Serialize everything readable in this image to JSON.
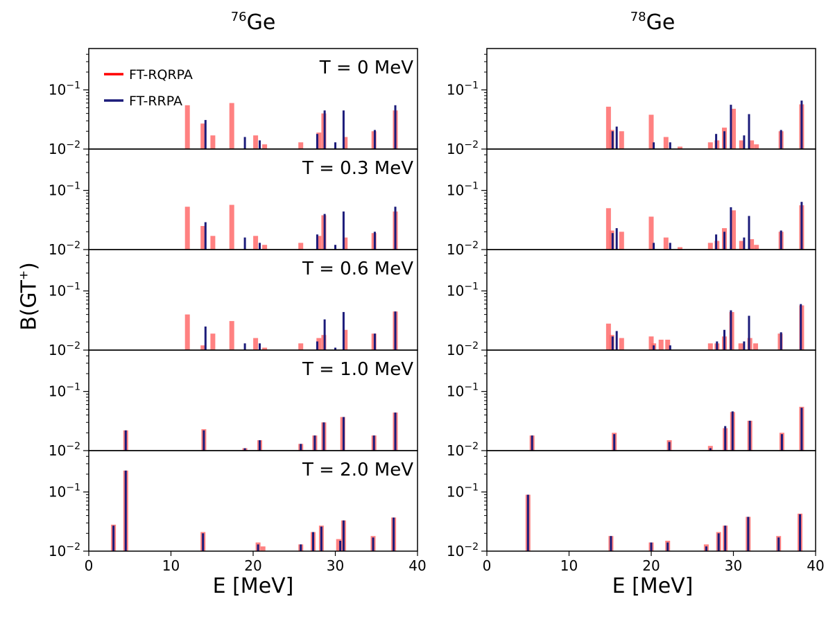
{
  "figure": {
    "ylabel_base": "B(GT",
    "ylabel_sup": "+",
    "ylabel_tail": ")",
    "temperatures": [
      "T = 0 MeV",
      "T = 0.3 MeV",
      "T = 0.6 MeV",
      "T = 1.0 MeV",
      "T = 2.0 MeV"
    ],
    "ytick_base": "10",
    "ytick_exp_major": "−1",
    "ytick_exp_bottom": "−2",
    "colors": {
      "FT-RQRPA": "#ff6b6b",
      "FT-RRPA": "#1b1b7a"
    }
  },
  "columns": [
    {
      "iso_mass": "76",
      "iso_symbol": "Ge",
      "xlabel": "E [MeV]"
    },
    {
      "iso_mass": "78",
      "iso_symbol": "Ge",
      "xlabel": "E [MeV]"
    }
  ],
  "chart_data": [
    {
      "type": "bar",
      "title": "76Ge",
      "xlabel": "E [MeV]",
      "ylabel": "B(GT+)",
      "xlim": [
        0,
        40
      ],
      "xticks": [
        0,
        10,
        20,
        30,
        40
      ],
      "yscale": "log",
      "ylim": [
        0.01,
        0.5
      ],
      "legend": {
        "placement": "top-left",
        "entries": [
          "FT-RQRPA",
          "FT-RRPA"
        ]
      },
      "panels": [
        {
          "T": "T = 0 MeV",
          "series": [
            {
              "name": "FT-RQRPA",
              "x": [
                12.0,
                13.9,
                15.1,
                17.4,
                20.3,
                21.4,
                25.8,
                28.0,
                28.6,
                31.2,
                34.7,
                37.3
              ],
              "values": [
                0.055,
                0.027,
                0.017,
                0.06,
                0.017,
                0.012,
                0.013,
                0.019,
                0.04,
                0.016,
                0.02,
                0.045
              ]
            },
            {
              "name": "FT-RRPA",
              "x": [
                14.2,
                19.0,
                20.8,
                27.8,
                28.7,
                30.0,
                31.0,
                34.8,
                37.3
              ],
              "values": [
                0.031,
                0.016,
                0.014,
                0.018,
                0.045,
                0.013,
                0.045,
                0.021,
                0.055
              ]
            }
          ]
        },
        {
          "T": "T = 0.3 MeV",
          "series": [
            {
              "name": "FT-RQRPA",
              "x": [
                12.0,
                13.9,
                15.1,
                17.4,
                20.3,
                21.4,
                25.8,
                28.0,
                28.6,
                31.2,
                34.7,
                37.3
              ],
              "values": [
                0.053,
                0.025,
                0.017,
                0.057,
                0.017,
                0.012,
                0.013,
                0.017,
                0.038,
                0.016,
                0.019,
                0.044
              ]
            },
            {
              "name": "FT-RRPA",
              "x": [
                14.2,
                19.0,
                20.8,
                27.8,
                28.7,
                30.0,
                31.0,
                34.8,
                37.3
              ],
              "values": [
                0.029,
                0.016,
                0.013,
                0.018,
                0.04,
                0.012,
                0.044,
                0.02,
                0.053
              ]
            }
          ]
        },
        {
          "T": "T = 0.6 MeV",
          "series": [
            {
              "name": "FT-RQRPA",
              "x": [
                12.0,
                13.9,
                15.1,
                17.4,
                20.3,
                21.4,
                25.8,
                28.0,
                28.6,
                31.2,
                34.7,
                37.3
              ],
              "values": [
                0.04,
                0.012,
                0.019,
                0.031,
                0.016,
                0.011,
                0.013,
                0.016,
                0.018,
                0.022,
                0.019,
                0.045
              ]
            },
            {
              "name": "FT-RRPA",
              "x": [
                14.2,
                19.0,
                20.8,
                27.8,
                28.7,
                30.0,
                31.0,
                34.8,
                37.3
              ],
              "values": [
                0.025,
                0.013,
                0.013,
                0.014,
                0.033,
                0.011,
                0.044,
                0.019,
                0.045
              ]
            }
          ]
        },
        {
          "T": "T = 1.0 MeV",
          "series": [
            {
              "name": "FT-RQRPA",
              "x": [
                4.5,
                14.0,
                19.0,
                20.8,
                25.8,
                27.5,
                28.6,
                30.9,
                34.7,
                37.3
              ],
              "values": [
                0.022,
                0.023,
                0.011,
                0.015,
                0.013,
                0.018,
                0.03,
                0.037,
                0.018,
                0.044
              ]
            },
            {
              "name": "FT-RRPA",
              "x": [
                4.5,
                14.0,
                19.0,
                20.8,
                25.8,
                27.5,
                28.6,
                31.0,
                34.7,
                37.3
              ],
              "values": [
                0.022,
                0.022,
                0.011,
                0.015,
                0.013,
                0.018,
                0.03,
                0.037,
                0.018,
                0.044
              ]
            }
          ]
        },
        {
          "T": "T = 2.0 MeV",
          "series": [
            {
              "name": "FT-RQRPA",
              "x": [
                3.0,
                4.5,
                13.9,
                20.6,
                21.2,
                25.8,
                27.3,
                28.3,
                30.4,
                31.0,
                34.6,
                37.1
              ],
              "values": [
                0.028,
                0.23,
                0.021,
                0.014,
                0.012,
                0.013,
                0.021,
                0.027,
                0.016,
                0.033,
                0.018,
                0.037
              ]
            },
            {
              "name": "FT-RRPA",
              "x": [
                3.0,
                4.5,
                13.9,
                20.6,
                25.8,
                27.3,
                28.3,
                30.6,
                31.0,
                34.6,
                37.1
              ],
              "values": [
                0.027,
                0.23,
                0.02,
                0.013,
                0.013,
                0.021,
                0.026,
                0.015,
                0.033,
                0.017,
                0.037
              ]
            }
          ]
        }
      ]
    },
    {
      "type": "bar",
      "title": "78Ge",
      "xlabel": "E [MeV]",
      "ylabel": "B(GT+)",
      "xlim": [
        0,
        40
      ],
      "xticks": [
        0,
        10,
        20,
        30,
        40
      ],
      "yscale": "log",
      "ylim": [
        0.01,
        0.5
      ],
      "panels": [
        {
          "T": "T = 0 MeV",
          "series": [
            {
              "name": "FT-RQRPA",
              "x": [
                14.8,
                15.2,
                16.4,
                20.0,
                21.8,
                23.5,
                27.2,
                28.0,
                28.9,
                30.0,
                31.0,
                32.2,
                32.8,
                35.8,
                38.3
              ],
              "values": [
                0.052,
                0.021,
                0.02,
                0.038,
                0.016,
                0.011,
                0.013,
                0.014,
                0.023,
                0.048,
                0.014,
                0.014,
                0.012,
                0.02,
                0.057
              ]
            },
            {
              "name": "FT-RRPA",
              "x": [
                15.3,
                15.8,
                20.3,
                22.3,
                27.9,
                28.9,
                29.7,
                31.3,
                31.9,
                35.8,
                38.3
              ],
              "values": [
                0.02,
                0.024,
                0.013,
                0.013,
                0.018,
                0.02,
                0.056,
                0.017,
                0.039,
                0.021,
                0.066
              ]
            }
          ]
        },
        {
          "T": "T = 0.3 MeV",
          "series": [
            {
              "name": "FT-RQRPA",
              "x": [
                14.8,
                15.2,
                16.4,
                20.0,
                21.8,
                23.5,
                27.2,
                28.0,
                28.9,
                30.0,
                31.0,
                32.2,
                32.8,
                35.8,
                38.3
              ],
              "values": [
                0.05,
                0.021,
                0.02,
                0.036,
                0.016,
                0.011,
                0.013,
                0.014,
                0.023,
                0.046,
                0.014,
                0.015,
                0.012,
                0.02,
                0.056
              ]
            },
            {
              "name": "FT-RRPA",
              "x": [
                15.3,
                15.8,
                20.3,
                22.3,
                27.9,
                28.9,
                29.7,
                31.3,
                31.9,
                35.8,
                38.3
              ],
              "values": [
                0.019,
                0.023,
                0.013,
                0.013,
                0.018,
                0.02,
                0.052,
                0.016,
                0.037,
                0.021,
                0.064
              ]
            }
          ]
        },
        {
          "T": "T = 0.6 MeV",
          "series": [
            {
              "name": "FT-RQRPA",
              "x": [
                14.8,
                15.2,
                16.4,
                20.0,
                20.3,
                21.2,
                22.0,
                27.2,
                28.0,
                28.9,
                29.8,
                30.9,
                32.0,
                32.7,
                35.7,
                38.3
              ],
              "values": [
                0.028,
                0.018,
                0.016,
                0.017,
                0.013,
                0.015,
                0.015,
                0.013,
                0.013,
                0.017,
                0.044,
                0.013,
                0.016,
                0.013,
                0.019,
                0.057
              ]
            },
            {
              "name": "FT-RRPA",
              "x": [
                15.3,
                15.8,
                20.3,
                22.3,
                28.0,
                28.9,
                29.7,
                31.3,
                31.9,
                35.8,
                38.2
              ],
              "values": [
                0.017,
                0.021,
                0.012,
                0.012,
                0.014,
                0.022,
                0.047,
                0.014,
                0.038,
                0.02,
                0.06
              ]
            }
          ]
        },
        {
          "T": "T = 1.0 MeV",
          "series": [
            {
              "name": "FT-RQRPA",
              "x": [
                5.5,
                15.5,
                22.2,
                27.2,
                29.0,
                29.9,
                32.0,
                35.9,
                38.3
              ],
              "values": [
                0.018,
                0.02,
                0.015,
                0.012,
                0.024,
                0.045,
                0.032,
                0.02,
                0.055
              ]
            },
            {
              "name": "FT-RRPA",
              "x": [
                5.5,
                15.5,
                22.2,
                27.2,
                29.0,
                29.9,
                32.0,
                35.9,
                38.3
              ],
              "values": [
                0.018,
                0.019,
                0.014,
                0.011,
                0.026,
                0.046,
                0.032,
                0.019,
                0.053
              ]
            }
          ]
        },
        {
          "T": "T = 2.0 MeV",
          "series": [
            {
              "name": "FT-RQRPA",
              "x": [
                5.0,
                15.1,
                20.0,
                22.0,
                26.7,
                28.2,
                29.0,
                31.8,
                35.5,
                38.1
              ],
              "values": [
                0.09,
                0.018,
                0.014,
                0.015,
                0.013,
                0.021,
                0.027,
                0.038,
                0.018,
                0.043
              ]
            },
            {
              "name": "FT-RRPA",
              "x": [
                5.0,
                15.1,
                20.0,
                22.0,
                26.7,
                28.2,
                29.0,
                31.8,
                35.5,
                38.1
              ],
              "values": [
                0.09,
                0.018,
                0.014,
                0.014,
                0.012,
                0.02,
                0.027,
                0.038,
                0.017,
                0.042
              ]
            }
          ]
        }
      ]
    }
  ]
}
